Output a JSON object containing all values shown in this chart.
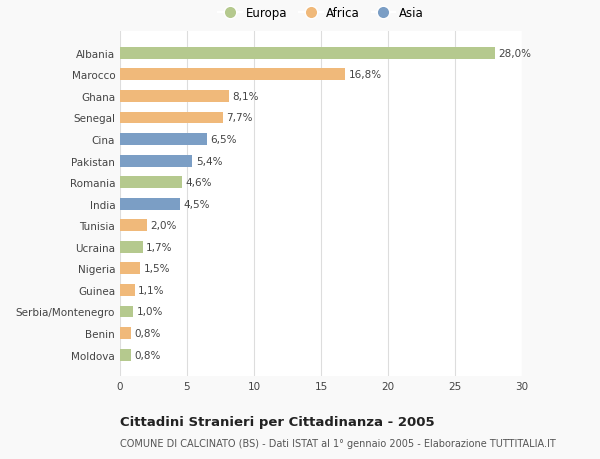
{
  "countries": [
    "Albania",
    "Marocco",
    "Ghana",
    "Senegal",
    "Cina",
    "Pakistan",
    "Romania",
    "India",
    "Tunisia",
    "Ucraina",
    "Nigeria",
    "Guinea",
    "Serbia/Montenegro",
    "Benin",
    "Moldova"
  ],
  "values": [
    28.0,
    16.8,
    8.1,
    7.7,
    6.5,
    5.4,
    4.6,
    4.5,
    2.0,
    1.7,
    1.5,
    1.1,
    1.0,
    0.8,
    0.8
  ],
  "labels": [
    "28,0%",
    "16,8%",
    "8,1%",
    "7,7%",
    "6,5%",
    "5,4%",
    "4,6%",
    "4,5%",
    "2,0%",
    "1,7%",
    "1,5%",
    "1,1%",
    "1,0%",
    "0,8%",
    "0,8%"
  ],
  "continents": [
    "Europa",
    "Africa",
    "Africa",
    "Africa",
    "Asia",
    "Asia",
    "Europa",
    "Asia",
    "Africa",
    "Europa",
    "Africa",
    "Africa",
    "Europa",
    "Africa",
    "Europa"
  ],
  "colors": {
    "Europa": "#b5c98e",
    "Africa": "#f0b97a",
    "Asia": "#7b9ec5"
  },
  "title": "Cittadini Stranieri per Cittadinanza - 2005",
  "subtitle": "COMUNE DI CALCINATO (BS) - Dati ISTAT al 1° gennaio 2005 - Elaborazione TUTTITALIA.IT",
  "xlim": [
    0,
    30
  ],
  "xticks": [
    0,
    5,
    10,
    15,
    20,
    25,
    30
  ],
  "background_color": "#f9f9f9",
  "plot_bg_color": "#ffffff",
  "grid_color": "#dddddd",
  "bar_height": 0.55,
  "label_fontsize": 7.5,
  "title_fontsize": 9.5,
  "subtitle_fontsize": 7,
  "tick_fontsize": 7.5,
  "legend_fontsize": 8.5,
  "legend_markersize": 9
}
